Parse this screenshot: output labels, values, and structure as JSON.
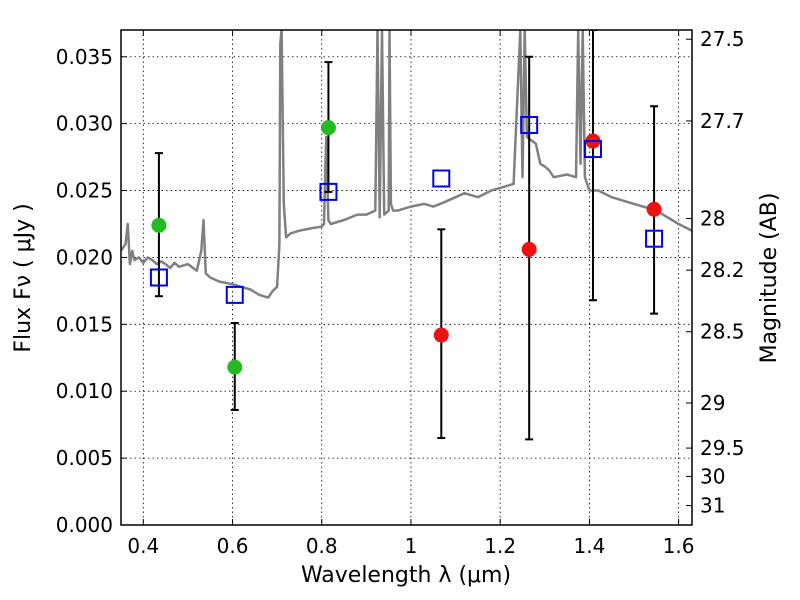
{
  "chart_data": {
    "type": "scatter",
    "title": "",
    "xlabel": "Wavelength  λ (μm)",
    "ylabel": "Flux  Fν  ( μJy )",
    "ylabel_right": "Magnitude (AB)",
    "xlim": [
      0.35,
      1.63
    ],
    "ylim": [
      0.0,
      0.037
    ],
    "grid": true,
    "x_ticks": [
      0.4,
      0.6,
      0.8,
      1.0,
      1.2,
      1.4,
      1.6
    ],
    "x_tick_labels": [
      "0.4",
      "0.6",
      "0.8",
      "1",
      "1.2",
      "1.4",
      "1.6"
    ],
    "y_ticks": [
      0.0,
      0.005,
      0.01,
      0.015,
      0.02,
      0.025,
      0.03,
      0.035
    ],
    "y_tick_labels": [
      "0.000",
      "0.005",
      "0.010",
      "0.015",
      "0.020",
      "0.025",
      "0.030",
      "0.035"
    ],
    "right_axis_ticks": [
      {
        "label": "27.5",
        "flux": 0.03631
      },
      {
        "label": "27.7",
        "flux": 0.0302
      },
      {
        "label": "28",
        "flux": 0.02291
      },
      {
        "label": "28.2",
        "flux": 0.01905
      },
      {
        "label": "28.5",
        "flux": 0.01445
      },
      {
        "label": "29",
        "flux": 0.00912
      },
      {
        "label": "29.5",
        "flux": 0.00575
      },
      {
        "label": "30",
        "flux": 0.00363
      },
      {
        "label": "31",
        "flux": 0.00145
      }
    ],
    "series": [
      {
        "color": "#808080",
        "kind": "line",
        "x": [
          0.35,
          0.36,
          0.365,
          0.37,
          0.375,
          0.38,
          0.39,
          0.4,
          0.41,
          0.42,
          0.43,
          0.44,
          0.45,
          0.46,
          0.47,
          0.48,
          0.5,
          0.52,
          0.53,
          0.535,
          0.54,
          0.55,
          0.57,
          0.6,
          0.62,
          0.64,
          0.66,
          0.68,
          0.69,
          0.7,
          0.705,
          0.707,
          0.71,
          0.715,
          0.72,
          0.73,
          0.75,
          0.78,
          0.8,
          0.805,
          0.81,
          0.815,
          0.82,
          0.85,
          0.88,
          0.9,
          0.92,
          0.925,
          0.93,
          0.935,
          0.94,
          0.95,
          0.952,
          0.955,
          0.96,
          0.97,
          1.0,
          1.03,
          1.05,
          1.08,
          1.1,
          1.12,
          1.15,
          1.18,
          1.2,
          1.23,
          1.245,
          1.25,
          1.255,
          1.26,
          1.28,
          1.29,
          1.3,
          1.31,
          1.32,
          1.35,
          1.37,
          1.375,
          1.38,
          1.385,
          1.39,
          1.4,
          1.42,
          1.45,
          1.5,
          1.55,
          1.6,
          1.63
        ],
        "y": [
          0.0205,
          0.021,
          0.0225,
          0.0195,
          0.0205,
          0.0198,
          0.02,
          0.0196,
          0.02,
          0.0198,
          0.0195,
          0.0197,
          0.0195,
          0.0192,
          0.0196,
          0.0193,
          0.0195,
          0.019,
          0.0205,
          0.0228,
          0.0188,
          0.0185,
          0.0182,
          0.018,
          0.0178,
          0.0176,
          0.0172,
          0.017,
          0.0175,
          0.0178,
          0.021,
          0.036,
          0.037,
          0.024,
          0.0215,
          0.0218,
          0.022,
          0.0222,
          0.0223,
          0.0225,
          0.029,
          0.0228,
          0.0225,
          0.0228,
          0.0232,
          0.0232,
          0.0235,
          0.037,
          0.023,
          0.037,
          0.0232,
          0.0235,
          0.037,
          0.024,
          0.0235,
          0.0235,
          0.0238,
          0.024,
          0.0238,
          0.0242,
          0.0245,
          0.0248,
          0.0245,
          0.025,
          0.0252,
          0.0255,
          0.037,
          0.026,
          0.037,
          0.029,
          0.0285,
          0.027,
          0.0268,
          0.0265,
          0.026,
          0.0262,
          0.026,
          0.037,
          0.027,
          0.037,
          0.026,
          0.025,
          0.025,
          0.0245,
          0.024,
          0.0235,
          0.0225,
          0.022
        ]
      },
      {
        "color": "#22bb22",
        "kind": "points",
        "x": [
          0.435,
          0.605,
          0.815
        ],
        "y": [
          0.0224,
          0.0118,
          0.0297
        ],
        "err_low": [
          0.0171,
          0.0086,
          0.0249
        ],
        "err_high": [
          0.0278,
          0.0151,
          0.0346
        ]
      },
      {
        "color": "#ee1111",
        "kind": "points",
        "x": [
          1.068,
          1.265,
          1.408,
          1.545
        ],
        "y": [
          0.0142,
          0.0206,
          0.0287,
          0.0236
        ],
        "err_low": [
          0.0065,
          0.0064,
          0.0168,
          0.0158
        ],
        "err_high": [
          0.0221,
          0.035,
          0.037,
          0.0313
        ]
      },
      {
        "color": "#0000ee",
        "kind": "open-squares",
        "x": [
          0.435,
          0.605,
          0.815,
          1.068,
          1.265,
          1.408,
          1.545
        ],
        "y": [
          0.0185,
          0.0172,
          0.0249,
          0.0259,
          0.0299,
          0.0281,
          0.0214
        ]
      }
    ]
  }
}
